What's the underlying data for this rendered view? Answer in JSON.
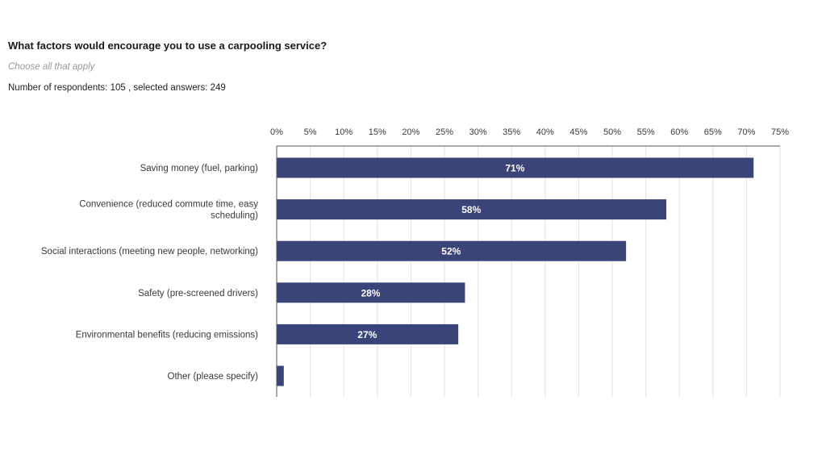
{
  "survey": {
    "question": "What factors would encourage you to use a carpooling service?",
    "hint": "Choose all that apply",
    "stats": "Number of respondents: 105 , selected answers: 249"
  },
  "colors": {
    "bar": "#3b4479",
    "grid": "#e2e2e2",
    "axis": "#555555",
    "label": "#3a3a3a",
    "value_label": "#ffffff"
  },
  "chart_data": {
    "type": "bar",
    "orientation": "horizontal",
    "categories": [
      [
        "Saving money (fuel, parking)"
      ],
      [
        "Convenience (reduced commute time, easy",
        "scheduling)"
      ],
      [
        "Social interactions (meeting new people, networking)"
      ],
      [
        "Safety (pre-screened drivers)"
      ],
      [
        "Environmental benefits (reducing emissions)"
      ],
      [
        "Other (please specify)"
      ]
    ],
    "values": [
      71,
      58,
      52,
      28,
      27,
      1
    ],
    "value_labels": [
      "71%",
      "58%",
      "52%",
      "28%",
      "27%",
      ""
    ],
    "ticks": [
      "0%",
      "5%",
      "10%",
      "15%",
      "20%",
      "25%",
      "30%",
      "35%",
      "40%",
      "45%",
      "50%",
      "55%",
      "60%",
      "65%",
      "70%",
      "75%"
    ],
    "xlim": [
      0,
      75
    ],
    "axis_position": "top",
    "grid": true
  }
}
